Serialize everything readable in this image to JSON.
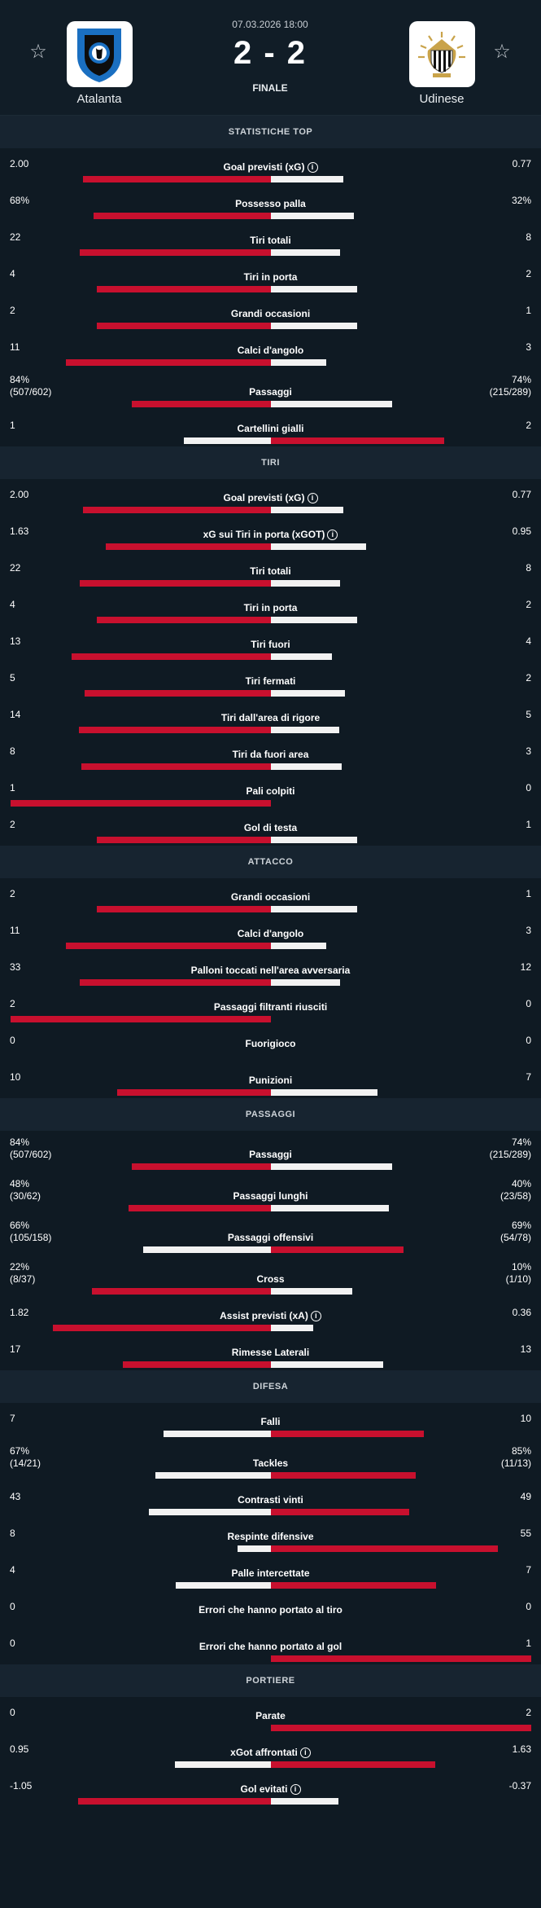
{
  "match": {
    "date": "07.03.2026 18:00",
    "score": "2 - 2",
    "status": "FINALE",
    "home": {
      "name": "Atalanta"
    },
    "away": {
      "name": "Udinese"
    }
  },
  "colors": {
    "red": "#c8102e",
    "white": "#f2f2f2",
    "bg": "#0f1a23",
    "section": "#172430"
  },
  "icons": {
    "favorite": "star-outline-icon",
    "info": "info-circle-icon"
  },
  "sections": [
    {
      "title": "STATISTICHE TOP",
      "rows": [
        {
          "label": "Goal previsti (xG)",
          "info": true,
          "home": "2.00",
          "away": "0.77",
          "hv": 2.0,
          "av": 0.77
        },
        {
          "label": "Possesso palla",
          "home": "68%",
          "away": "32%",
          "hv": 68,
          "av": 32
        },
        {
          "label": "Tiri totali",
          "home": "22",
          "away": "8",
          "hv": 22,
          "av": 8
        },
        {
          "label": "Tiri in porta",
          "home": "4",
          "away": "2",
          "hv": 4,
          "av": 2
        },
        {
          "label": "Grandi occasioni",
          "home": "2",
          "away": "1",
          "hv": 2,
          "av": 1
        },
        {
          "label": "Calci d'angolo",
          "home": "11",
          "away": "3",
          "hv": 11,
          "av": 3
        },
        {
          "label": "Passaggi",
          "home": "84%",
          "home_sub": "(507/602)",
          "away": "74%",
          "away_sub": "(215/289)",
          "hv": 84,
          "av": 74
        },
        {
          "label": "Cartellini gialli",
          "home": "1",
          "away": "2",
          "hv": 1,
          "av": 2
        }
      ]
    },
    {
      "title": "TIRI",
      "rows": [
        {
          "label": "Goal previsti (xG)",
          "info": true,
          "home": "2.00",
          "away": "0.77",
          "hv": 2.0,
          "av": 0.77
        },
        {
          "label": "xG sui Tiri in porta (xGOT)",
          "info": true,
          "home": "1.63",
          "away": "0.95",
          "hv": 1.63,
          "av": 0.95
        },
        {
          "label": "Tiri totali",
          "home": "22",
          "away": "8",
          "hv": 22,
          "av": 8
        },
        {
          "label": "Tiri in porta",
          "home": "4",
          "away": "2",
          "hv": 4,
          "av": 2
        },
        {
          "label": "Tiri fuori",
          "home": "13",
          "away": "4",
          "hv": 13,
          "av": 4
        },
        {
          "label": "Tiri fermati",
          "home": "5",
          "away": "2",
          "hv": 5,
          "av": 2
        },
        {
          "label": "Tiri dall'area di rigore",
          "home": "14",
          "away": "5",
          "hv": 14,
          "av": 5
        },
        {
          "label": "Tiri da fuori area",
          "home": "8",
          "away": "3",
          "hv": 8,
          "av": 3
        },
        {
          "label": "Pali colpiti",
          "home": "1",
          "away": "0",
          "hv": 1,
          "av": 0
        },
        {
          "label": "Gol di testa",
          "home": "2",
          "away": "1",
          "hv": 2,
          "av": 1
        }
      ]
    },
    {
      "title": "ATTACCO",
      "rows": [
        {
          "label": "Grandi occasioni",
          "home": "2",
          "away": "1",
          "hv": 2,
          "av": 1
        },
        {
          "label": "Calci d'angolo",
          "home": "11",
          "away": "3",
          "hv": 11,
          "av": 3
        },
        {
          "label": "Palloni toccati nell'area avversaria",
          "home": "33",
          "away": "12",
          "hv": 33,
          "av": 12
        },
        {
          "label": "Passaggi filtranti riusciti",
          "home": "2",
          "away": "0",
          "hv": 2,
          "av": 0
        },
        {
          "label": "Fuorigioco",
          "home": "0",
          "away": "0",
          "hv": 0,
          "av": 0
        },
        {
          "label": "Punizioni",
          "home": "10",
          "away": "7",
          "hv": 10,
          "av": 7
        }
      ]
    },
    {
      "title": "PASSAGGI",
      "rows": [
        {
          "label": "Passaggi",
          "home": "84%",
          "home_sub": "(507/602)",
          "away": "74%",
          "away_sub": "(215/289)",
          "hv": 84,
          "av": 74
        },
        {
          "label": "Passaggi lunghi",
          "home": "48%",
          "home_sub": "(30/62)",
          "away": "40%",
          "away_sub": "(23/58)",
          "hv": 48,
          "av": 40
        },
        {
          "label": "Passaggi offensivi",
          "home": "66%",
          "home_sub": "(105/158)",
          "away": "69%",
          "away_sub": "(54/78)",
          "hv": 66,
          "av": 69
        },
        {
          "label": "Cross",
          "home": "22%",
          "home_sub": "(8/37)",
          "away": "10%",
          "away_sub": "(1/10)",
          "hv": 22,
          "av": 10
        },
        {
          "label": "Assist previsti (xA)",
          "info": true,
          "home": "1.82",
          "away": "0.36",
          "hv": 1.82,
          "av": 0.36
        },
        {
          "label": "Rimesse Laterali",
          "home": "17",
          "away": "13",
          "hv": 17,
          "av": 13
        }
      ]
    },
    {
      "title": "DIFESA",
      "rows": [
        {
          "label": "Falli",
          "home": "7",
          "away": "10",
          "hv": 7,
          "av": 10
        },
        {
          "label": "Tackles",
          "home": "67%",
          "home_sub": "(14/21)",
          "away": "85%",
          "away_sub": "(11/13)",
          "hv": 67,
          "av": 85
        },
        {
          "label": "Contrasti vinti",
          "home": "43",
          "away": "49",
          "hv": 43,
          "av": 49
        },
        {
          "label": "Respinte difensive",
          "home": "8",
          "away": "55",
          "hv": 8,
          "av": 55
        },
        {
          "label": "Palle intercettate",
          "home": "4",
          "away": "7",
          "hv": 4,
          "av": 7
        },
        {
          "label": "Errori che hanno portato al tiro",
          "home": "0",
          "away": "0",
          "hv": 0,
          "av": 0
        },
        {
          "label": "Errori che hanno portato al gol",
          "home": "0",
          "away": "1",
          "hv": 0,
          "av": 1
        }
      ]
    },
    {
      "title": "PORTIERE",
      "rows": [
        {
          "label": "Parate",
          "home": "0",
          "away": "2",
          "hv": 0,
          "av": 2
        },
        {
          "label": "xGot affrontati",
          "info": true,
          "home": "0.95",
          "away": "1.63",
          "hv": 0.95,
          "av": 1.63
        },
        {
          "label": "Gol evitati",
          "info": true,
          "home": "-1.05",
          "away": "-0.37",
          "hv": -1.05,
          "av": -0.37
        }
      ]
    }
  ]
}
